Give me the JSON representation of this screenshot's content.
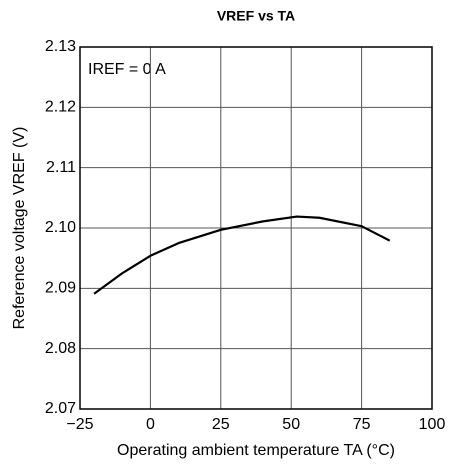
{
  "chart_data": {
    "type": "line",
    "title": "VREF vs TA",
    "xlabel": "Operating ambient temperature  TA (°C)",
    "ylabel": "Reference voltage  VREF (V)",
    "annotation": "IREF = 0 A",
    "x": [
      -20,
      -10,
      0,
      10,
      25,
      40,
      52,
      60,
      75,
      85
    ],
    "series": [
      {
        "name": "VREF",
        "color": "#000000",
        "values": [
          2.0891,
          2.0925,
          2.0954,
          2.0975,
          2.0997,
          2.1011,
          2.1019,
          2.1017,
          2.1003,
          2.0979
        ]
      }
    ],
    "xlim": [
      -25,
      100
    ],
    "xticks": [
      {
        "value": -25,
        "label": "−25"
      },
      0,
      25,
      50,
      75,
      100
    ],
    "ylim": [
      2.07,
      2.13
    ],
    "yticks": [
      2.07,
      2.08,
      2.09,
      {
        "value": 2.1,
        "label": "2.10"
      },
      2.11,
      2.12,
      2.13
    ],
    "grid": true
  }
}
